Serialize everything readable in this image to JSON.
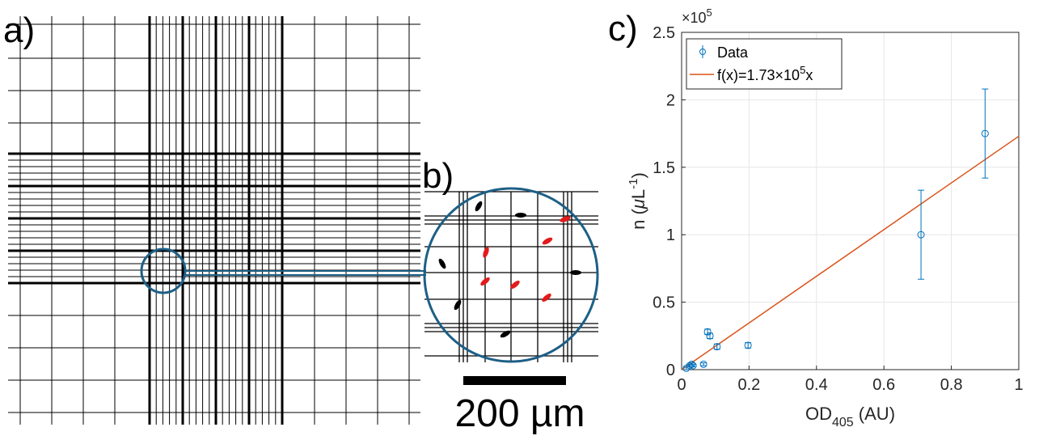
{
  "panels": {
    "a": "a)",
    "b": "b)",
    "c": "c)"
  },
  "scale_bar": "200 µm",
  "chart_data": {
    "type": "scatter",
    "multiplier": {
      "base": "×10",
      "exponent": "5"
    },
    "x_label": {
      "main": "OD",
      "sub": "405",
      "rest": " (AU)"
    },
    "y_label": {
      "pre": "n (",
      "mu": "μ",
      "unit": "L",
      "exp": "-1",
      "post": ")"
    },
    "xlim": [
      0,
      1
    ],
    "xticks": [
      0,
      0.2,
      0.4,
      0.6,
      0.8,
      1
    ],
    "ylim": [
      0,
      2.5
    ],
    "yticks": [
      0,
      0.5,
      1,
      1.5,
      2,
      2.5
    ],
    "grid": true,
    "legend": "upper left",
    "series": [
      {
        "name": "Data",
        "color": "#0072bd",
        "x": [
          0.014,
          0.024,
          0.03,
          0.034,
          0.065,
          0.077,
          0.084,
          0.105,
          0.197,
          0.71,
          0.9
        ],
        "y": [
          0.01,
          0.03,
          0.04,
          0.03,
          0.04,
          0.28,
          0.25,
          0.17,
          0.18,
          1.0,
          1.75
        ],
        "errors": [
          0.01,
          0.01,
          0.01,
          0.01,
          0.01,
          0.02,
          0.02,
          0.02,
          0.02,
          0.33,
          0.33
        ]
      }
    ],
    "fit": {
      "name": {
        "pre": "f(x)=1.73×10",
        "exp": "5",
        "post": "x"
      },
      "color": "#d95319",
      "slope": 1.73
    }
  }
}
